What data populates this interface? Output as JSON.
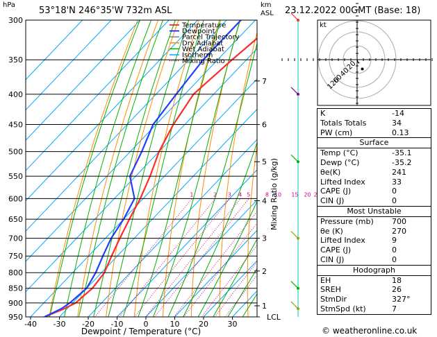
{
  "header": {
    "location": "53°18'N  246°35'W  732m  ASL",
    "datetime": "23.12.2022  00GMT  (Base: 18)",
    "hpa_unit": "hPa",
    "km_unit": "km",
    "asl_unit": "ASL"
  },
  "legend": {
    "items": [
      {
        "label": "Temperature",
        "color": "#ff0000",
        "style": "solid"
      },
      {
        "label": "Dewpoint",
        "color": "#0000ff",
        "style": "solid"
      },
      {
        "label": "Parcel Trajectory",
        "color": "#808080",
        "style": "solid"
      },
      {
        "label": "Dry Adiabat",
        "color": "#ff8c00",
        "style": "solid"
      },
      {
        "label": "Wet Adiabat",
        "color": "#00b000",
        "style": "solid"
      },
      {
        "label": "Isotherm",
        "color": "#00a8ff",
        "style": "solid"
      },
      {
        "label": "Mixing Ratio",
        "color": "#d0008c",
        "style": "dotted"
      }
    ]
  },
  "chart_data": {
    "type": "skew-t",
    "xlabel": "Dewpoint / Temperature (°C)",
    "ylabel_right": "Mixing Ratio (g/kg)",
    "pressure_levels": [
      300,
      350,
      400,
      450,
      500,
      550,
      600,
      650,
      700,
      750,
      800,
      850,
      900,
      950
    ],
    "temp_ticks": [
      -40,
      -30,
      -20,
      -10,
      0,
      10,
      20,
      30
    ],
    "km_ticks": [
      {
        "label": "7",
        "p": 380
      },
      {
        "label": "6",
        "p": 450
      },
      {
        "label": "5",
        "p": 520
      },
      {
        "label": "4",
        "p": 605
      },
      {
        "label": "3",
        "p": 700
      },
      {
        "label": "2",
        "p": 795
      },
      {
        "label": "1",
        "p": 910
      },
      {
        "label": "LCL",
        "p": 950
      }
    ],
    "mixing_ratio_labels": [
      "1",
      "2",
      "3",
      "4",
      "5",
      "8",
      "10",
      "15",
      "20",
      "25"
    ],
    "mixing_ratio_values": [
      1,
      2,
      3,
      4,
      5,
      8,
      10,
      15,
      20,
      25
    ],
    "temperature": [
      {
        "p": 950,
        "t": -35.1
      },
      {
        "p": 920,
        "t": -31
      },
      {
        "p": 900,
        "t": -29
      },
      {
        "p": 850,
        "t": -28
      },
      {
        "p": 800,
        "t": -29
      },
      {
        "p": 750,
        "t": -32
      },
      {
        "p": 700,
        "t": -35
      },
      {
        "p": 650,
        "t": -38
      },
      {
        "p": 600,
        "t": -41
      },
      {
        "p": 550,
        "t": -45
      },
      {
        "p": 500,
        "t": -50
      },
      {
        "p": 450,
        "t": -54
      },
      {
        "p": 400,
        "t": -57
      },
      {
        "p": 350,
        "t": -55
      },
      {
        "p": 300,
        "t": -52
      }
    ],
    "dewpoint": [
      {
        "p": 950,
        "t": -35.2
      },
      {
        "p": 920,
        "t": -32
      },
      {
        "p": 900,
        "t": -31
      },
      {
        "p": 850,
        "t": -30
      },
      {
        "p": 800,
        "t": -32
      },
      {
        "p": 750,
        "t": -35
      },
      {
        "p": 700,
        "t": -38
      },
      {
        "p": 650,
        "t": -40
      },
      {
        "p": 600,
        "t": -43
      },
      {
        "p": 550,
        "t": -52
      },
      {
        "p": 500,
        "t": -56
      },
      {
        "p": 450,
        "t": -61
      },
      {
        "p": 400,
        "t": -63
      },
      {
        "p": 350,
        "t": -65
      },
      {
        "p": 300,
        "t": -65
      }
    ],
    "xlim": [
      -40,
      38
    ],
    "ylim": [
      950,
      300
    ]
  },
  "hodograph": {
    "label": "kt",
    "ring_labels": [
      "20",
      "40",
      "60",
      "120"
    ],
    "trace": [
      {
        "u": 0,
        "v": 0
      },
      {
        "u": 1,
        "v": -4
      },
      {
        "u": 4,
        "v": -7
      }
    ],
    "dot": {
      "u": 10,
      "v": -18
    }
  },
  "indices": {
    "rows": [
      {
        "label": "K",
        "value": "-14"
      },
      {
        "label": "Totals Totals",
        "value": "34"
      },
      {
        "label": "PW (cm)",
        "value": "0.13"
      }
    ]
  },
  "surface": {
    "title": "Surface",
    "rows": [
      {
        "label": "Temp (°C)",
        "value": "-35.1"
      },
      {
        "label": "Dewp (°C)",
        "value": "-35.2"
      },
      {
        "label": "θe(K)",
        "value": "241"
      },
      {
        "label": "Lifted Index",
        "value": "33"
      },
      {
        "label": "CAPE (J)",
        "value": "0"
      },
      {
        "label": "CIN (J)",
        "value": "0"
      }
    ]
  },
  "most_unstable": {
    "title": "Most Unstable",
    "rows": [
      {
        "label": "Pressure (mb)",
        "value": "700"
      },
      {
        "label": "θe (K)",
        "value": "270"
      },
      {
        "label": "Lifted Index",
        "value": "9"
      },
      {
        "label": "CAPE (J)",
        "value": "0"
      },
      {
        "label": "CIN (J)",
        "value": "0"
      }
    ]
  },
  "hodograph_stats": {
    "title": "Hodograph",
    "rows": [
      {
        "label": "EH",
        "value": "18"
      },
      {
        "label": "SREH",
        "value": "26"
      },
      {
        "label": "StmDir",
        "value": "327°"
      },
      {
        "label": "StmSpd (kt)",
        "value": "7"
      }
    ]
  },
  "footer": {
    "copyright": "© weatheronline.co.uk"
  },
  "colors": {
    "temperature": "#ff2a2a",
    "dewpoint": "#1f3fff",
    "dry_adiabat": "#ff8c00",
    "wet_adiabat": "#00b000",
    "isotherm": "#00a8ff",
    "mixing_ratio": "#d0008c",
    "wind": "#a0a000",
    "wind_purple": "#8000a0"
  }
}
